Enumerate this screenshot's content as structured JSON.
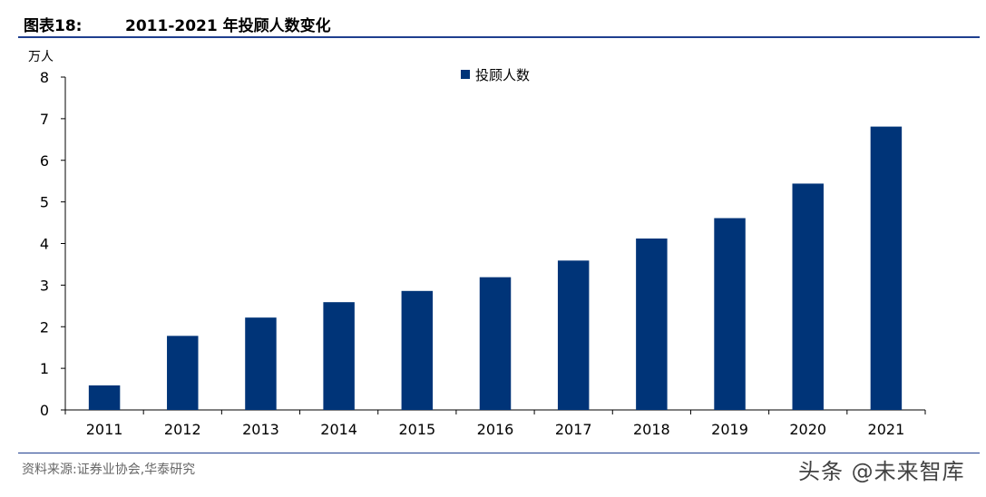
{
  "header": {
    "figure_label": "图表18:",
    "title": "2011-2021 年投顾人数变化"
  },
  "footer": {
    "source": "资料来源:证券业协会,华泰研究",
    "watermark": "头条 @未来智库"
  },
  "colors": {
    "bar": "#003478",
    "rule": "#1f3f8f"
  },
  "chart_data": {
    "type": "bar",
    "title": "",
    "xlabel": "",
    "ylabel": "万人",
    "ylim": [
      0,
      8
    ],
    "yticks": [
      0,
      1,
      2,
      3,
      4,
      5,
      6,
      7,
      8
    ],
    "categories": [
      "2011",
      "2012",
      "2013",
      "2014",
      "2015",
      "2016",
      "2017",
      "2018",
      "2019",
      "2020",
      "2021"
    ],
    "series": [
      {
        "name": "投顾人数",
        "values": [
          0.59,
          1.78,
          2.22,
          2.59,
          2.86,
          3.19,
          3.59,
          4.12,
          4.61,
          5.44,
          6.81
        ]
      }
    ],
    "legend_position": "top-center",
    "grid": false
  }
}
